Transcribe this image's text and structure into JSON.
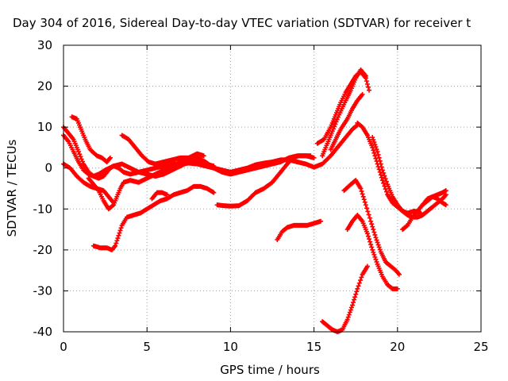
{
  "chart_data": {
    "type": "scatter",
    "title": "Day 304 of 2016, Sidereal Day-to-day VTEC variation (SDTVAR) for receiver t",
    "xlabel": "GPS time / hours",
    "ylabel": "SDTVAR / TECUs",
    "xlim": [
      0,
      25
    ],
    "ylim": [
      -40,
      30
    ],
    "xticks": [
      0,
      5,
      10,
      15,
      20,
      25
    ],
    "yticks": [
      -40,
      -30,
      -20,
      -10,
      0,
      10,
      20,
      30
    ],
    "grid": true,
    "legend": "none",
    "marker": "plus",
    "series_color": "#ff0000",
    "series": [
      {
        "points": [
          [
            0,
            10
          ],
          [
            0.3,
            8.5
          ],
          [
            0.6,
            7
          ],
          [
            0.9,
            4
          ],
          [
            1.2,
            1
          ],
          [
            1.5,
            -1
          ],
          [
            1.8,
            -2
          ],
          [
            2.1,
            -2.5
          ],
          [
            2.4,
            -2
          ],
          [
            2.6,
            -1
          ],
          [
            2.8,
            0
          ],
          [
            3.0,
            0.5
          ],
          [
            3.3,
            0
          ],
          [
            3.6,
            -1
          ],
          [
            4.0,
            -1.5
          ],
          [
            4.5,
            -1
          ],
          [
            5.0,
            -0.5
          ],
          [
            5.5,
            0
          ],
          [
            6.0,
            0.5
          ],
          [
            6.5,
            1
          ],
          [
            7.0,
            1
          ],
          [
            7.5,
            1.2
          ],
          [
            8.0,
            1
          ],
          [
            8.5,
            0.5
          ],
          [
            9.0,
            0
          ],
          [
            9.5,
            -0.5
          ],
          [
            10.0,
            -1
          ],
          [
            10.5,
            -0.5
          ],
          [
            11,
            0
          ],
          [
            11.5,
            0.8
          ],
          [
            12,
            1.2
          ],
          [
            12.5,
            1.5
          ],
          [
            13,
            2
          ],
          [
            13.5,
            2
          ],
          [
            14,
            1.5
          ],
          [
            14.5,
            1
          ],
          [
            15,
            0.2
          ],
          [
            15.5,
            1
          ],
          [
            16,
            3
          ],
          [
            16.5,
            5.5
          ],
          [
            17,
            8
          ],
          [
            17.3,
            9.5
          ],
          [
            17.6,
            10.5
          ]
        ]
      },
      {
        "points": [
          [
            0,
            8
          ],
          [
            0.3,
            6.5
          ],
          [
            0.6,
            4
          ],
          [
            0.9,
            1.5
          ],
          [
            1.2,
            -0.5
          ],
          [
            1.5,
            -1.5
          ],
          [
            1.8,
            -2
          ],
          [
            2.1,
            -1.5
          ],
          [
            2.5,
            -0.5
          ],
          [
            3,
            0.5
          ],
          [
            3.5,
            1
          ],
          [
            4,
            0
          ],
          [
            4.5,
            -1
          ],
          [
            5,
            -1.5
          ],
          [
            5.5,
            -2
          ],
          [
            6,
            -1.5
          ],
          [
            6.5,
            -0.5
          ],
          [
            7,
            0.5
          ],
          [
            7.5,
            1.5
          ],
          [
            8,
            2.5
          ],
          [
            8.5,
            1.5
          ],
          [
            9,
            0
          ],
          [
            9.5,
            -1
          ],
          [
            10,
            -1.5
          ],
          [
            10.5,
            -1
          ],
          [
            11,
            -0.5
          ],
          [
            11.5,
            0
          ],
          [
            12,
            0.5
          ],
          [
            12.5,
            1
          ],
          [
            13,
            1.5
          ],
          [
            13.5,
            2.5
          ],
          [
            14,
            3
          ],
          [
            14.5,
            3
          ],
          [
            15,
            2.5
          ]
        ]
      },
      {
        "points": [
          [
            0.5,
            12.5
          ],
          [
            0.8,
            12
          ],
          [
            1.0,
            10
          ],
          [
            1.3,
            7
          ],
          [
            1.6,
            4.5
          ],
          [
            2.0,
            3
          ],
          [
            2.3,
            2.5
          ],
          [
            2.6,
            1.5
          ],
          [
            2.8,
            2.5
          ]
        ]
      },
      {
        "points": [
          [
            1.5,
            -2.5
          ],
          [
            1.8,
            -4
          ],
          [
            2.1,
            -5.5
          ],
          [
            2.4,
            -8
          ],
          [
            2.7,
            -10
          ],
          [
            3.0,
            -9
          ],
          [
            3.2,
            -7
          ],
          [
            3.4,
            -5
          ],
          [
            3.6,
            -3.5
          ],
          [
            4.0,
            -3
          ],
          [
            4.5,
            -3.5
          ],
          [
            5.0,
            -2.5
          ],
          [
            5.5,
            -1.5
          ],
          [
            6.0,
            -0.5
          ],
          [
            6.5,
            0.5
          ],
          [
            7.0,
            1.5
          ],
          [
            7.5,
            2.5
          ],
          [
            8.0,
            3.5
          ],
          [
            8.4,
            3
          ]
        ]
      },
      {
        "points": [
          [
            0,
            1
          ],
          [
            0.4,
            0
          ],
          [
            0.8,
            -2
          ],
          [
            1.2,
            -3.5
          ],
          [
            1.6,
            -4.5
          ],
          [
            2.0,
            -5
          ],
          [
            2.4,
            -5.5
          ],
          [
            2.8,
            -7.5
          ],
          [
            3.0,
            -8.5
          ]
        ]
      },
      {
        "points": [
          [
            1.8,
            -19
          ],
          [
            2.2,
            -19.5
          ],
          [
            2.6,
            -19.5
          ],
          [
            2.9,
            -20
          ],
          [
            3.1,
            -19
          ],
          [
            3.3,
            -16.5
          ],
          [
            3.5,
            -14
          ],
          [
            3.8,
            -12
          ],
          [
            4.2,
            -11.5
          ],
          [
            4.6,
            -11
          ],
          [
            5.0,
            -10
          ],
          [
            5.4,
            -9
          ],
          [
            5.8,
            -8
          ],
          [
            6.2,
            -7.5
          ],
          [
            6.6,
            -6.5
          ],
          [
            7.0,
            -6
          ],
          [
            7.4,
            -5.5
          ],
          [
            7.8,
            -4.5
          ],
          [
            8.2,
            -4.5
          ],
          [
            8.6,
            -5
          ],
          [
            9.0,
            -6
          ]
        ]
      },
      {
        "points": [
          [
            3.5,
            8
          ],
          [
            3.9,
            7
          ],
          [
            4.3,
            5
          ],
          [
            4.7,
            3
          ],
          [
            5.1,
            1.5
          ],
          [
            5.5,
            1
          ],
          [
            6,
            1.5
          ],
          [
            6.5,
            2
          ],
          [
            7,
            2.5
          ],
          [
            7.5,
            2.5
          ],
          [
            8,
            2
          ],
          [
            8.5,
            1
          ],
          [
            9,
            0.5
          ]
        ]
      },
      {
        "points": [
          [
            5.3,
            -7.5
          ],
          [
            5.6,
            -6
          ],
          [
            5.9,
            -6
          ],
          [
            6.2,
            -6.5
          ]
        ]
      },
      {
        "points": [
          [
            9.2,
            -9
          ],
          [
            9.6,
            -9.2
          ],
          [
            10,
            -9.3
          ],
          [
            10.5,
            -9.2
          ],
          [
            11,
            -8
          ],
          [
            11.5,
            -6
          ],
          [
            12,
            -5
          ],
          [
            12.5,
            -3.5
          ],
          [
            12.9,
            -1.5
          ],
          [
            13.2,
            0
          ],
          [
            13.5,
            1.5
          ],
          [
            13.8,
            2.5
          ],
          [
            14.1,
            3
          ],
          [
            14.5,
            3
          ],
          [
            14.8,
            3
          ]
        ]
      },
      {
        "points": [
          [
            12.8,
            -17.5
          ],
          [
            13.1,
            -15.5
          ],
          [
            13.4,
            -14.5
          ],
          [
            13.8,
            -14
          ],
          [
            14.2,
            -14
          ],
          [
            14.6,
            -14
          ],
          [
            15.0,
            -13.5
          ],
          [
            15.4,
            -13
          ]
        ]
      },
      {
        "points": [
          [
            15.2,
            6
          ],
          [
            15.6,
            7
          ],
          [
            16.0,
            10
          ],
          [
            16.3,
            13
          ],
          [
            16.6,
            16
          ],
          [
            16.9,
            18.5
          ],
          [
            17.2,
            20.5
          ],
          [
            17.5,
            22.5
          ],
          [
            17.8,
            23.5
          ],
          [
            18.1,
            22
          ],
          [
            18.3,
            19
          ]
        ]
      },
      {
        "points": [
          [
            15.5,
            3
          ],
          [
            15.8,
            6
          ],
          [
            16.1,
            9
          ],
          [
            16.5,
            13
          ],
          [
            16.9,
            16.5
          ],
          [
            17.2,
            19
          ],
          [
            17.5,
            22
          ],
          [
            17.8,
            24
          ],
          [
            18.1,
            22.5
          ]
        ]
      },
      {
        "points": [
          [
            16,
            4.5
          ],
          [
            16.3,
            7
          ],
          [
            16.6,
            9.5
          ],
          [
            17.0,
            12
          ],
          [
            17.3,
            14.5
          ],
          [
            17.6,
            16.5
          ],
          [
            17.9,
            18
          ]
        ]
      },
      {
        "points": [
          [
            16.8,
            -5.5
          ],
          [
            17.2,
            -4
          ],
          [
            17.5,
            -3
          ],
          [
            17.8,
            -5
          ],
          [
            18.1,
            -9
          ],
          [
            18.4,
            -13
          ],
          [
            18.7,
            -17
          ],
          [
            19,
            -20.5
          ],
          [
            19.3,
            -23
          ],
          [
            19.6,
            -24
          ],
          [
            19.9,
            -25
          ],
          [
            20.1,
            -26
          ]
        ]
      },
      {
        "points": [
          [
            17.0,
            -15
          ],
          [
            17.3,
            -13
          ],
          [
            17.6,
            -11.5
          ],
          [
            17.9,
            -13
          ],
          [
            18.2,
            -16
          ],
          [
            18.5,
            -20
          ],
          [
            18.8,
            -23.5
          ],
          [
            19.1,
            -26.5
          ],
          [
            19.4,
            -28.5
          ],
          [
            19.7,
            -29.5
          ],
          [
            20.0,
            -29.5
          ]
        ]
      },
      {
        "points": [
          [
            15.5,
            -37.5
          ],
          [
            15.8,
            -38.5
          ],
          [
            16.1,
            -39.5
          ],
          [
            16.4,
            -40
          ],
          [
            16.7,
            -39.5
          ],
          [
            17.0,
            -37
          ],
          [
            17.3,
            -33.5
          ],
          [
            17.6,
            -29.5
          ],
          [
            17.9,
            -26
          ],
          [
            18.2,
            -24
          ]
        ]
      },
      {
        "points": [
          [
            17.6,
            11
          ],
          [
            17.9,
            10
          ],
          [
            18.2,
            8
          ],
          [
            18.5,
            5
          ],
          [
            18.8,
            1
          ],
          [
            19.1,
            -3
          ],
          [
            19.4,
            -6.5
          ],
          [
            19.7,
            -8.5
          ],
          [
            20,
            -9.5
          ],
          [
            20.3,
            -10.5
          ],
          [
            20.6,
            -11
          ],
          [
            21,
            -10.5
          ],
          [
            21.4,
            -11
          ]
        ]
      },
      {
        "points": [
          [
            18.5,
            7.5
          ],
          [
            18.8,
            4
          ],
          [
            19.1,
            -0.5
          ],
          [
            19.4,
            -4
          ],
          [
            19.7,
            -7
          ],
          [
            20,
            -9
          ],
          [
            20.3,
            -10.5
          ],
          [
            20.6,
            -11.5
          ],
          [
            20.9,
            -12
          ],
          [
            21.2,
            -12
          ],
          [
            21.5,
            -11.5
          ],
          [
            21.8,
            -10.5
          ],
          [
            22.1,
            -9.5
          ],
          [
            22.4,
            -8.5
          ],
          [
            22.7,
            -7.5
          ],
          [
            22.9,
            -6.5
          ]
        ]
      },
      {
        "points": [
          [
            20.3,
            -15
          ],
          [
            20.6,
            -14
          ],
          [
            20.9,
            -12
          ],
          [
            21.2,
            -10.5
          ],
          [
            21.5,
            -9
          ],
          [
            21.8,
            -8
          ],
          [
            22.1,
            -7
          ],
          [
            22.4,
            -6.5
          ],
          [
            22.7,
            -6
          ],
          [
            22.9,
            -5.5
          ]
        ]
      },
      {
        "points": [
          [
            21.5,
            -9
          ],
          [
            21.8,
            -7.5
          ],
          [
            22.1,
            -7
          ],
          [
            22.4,
            -7.5
          ],
          [
            22.7,
            -8.5
          ],
          [
            22.9,
            -9
          ]
        ]
      }
    ]
  }
}
